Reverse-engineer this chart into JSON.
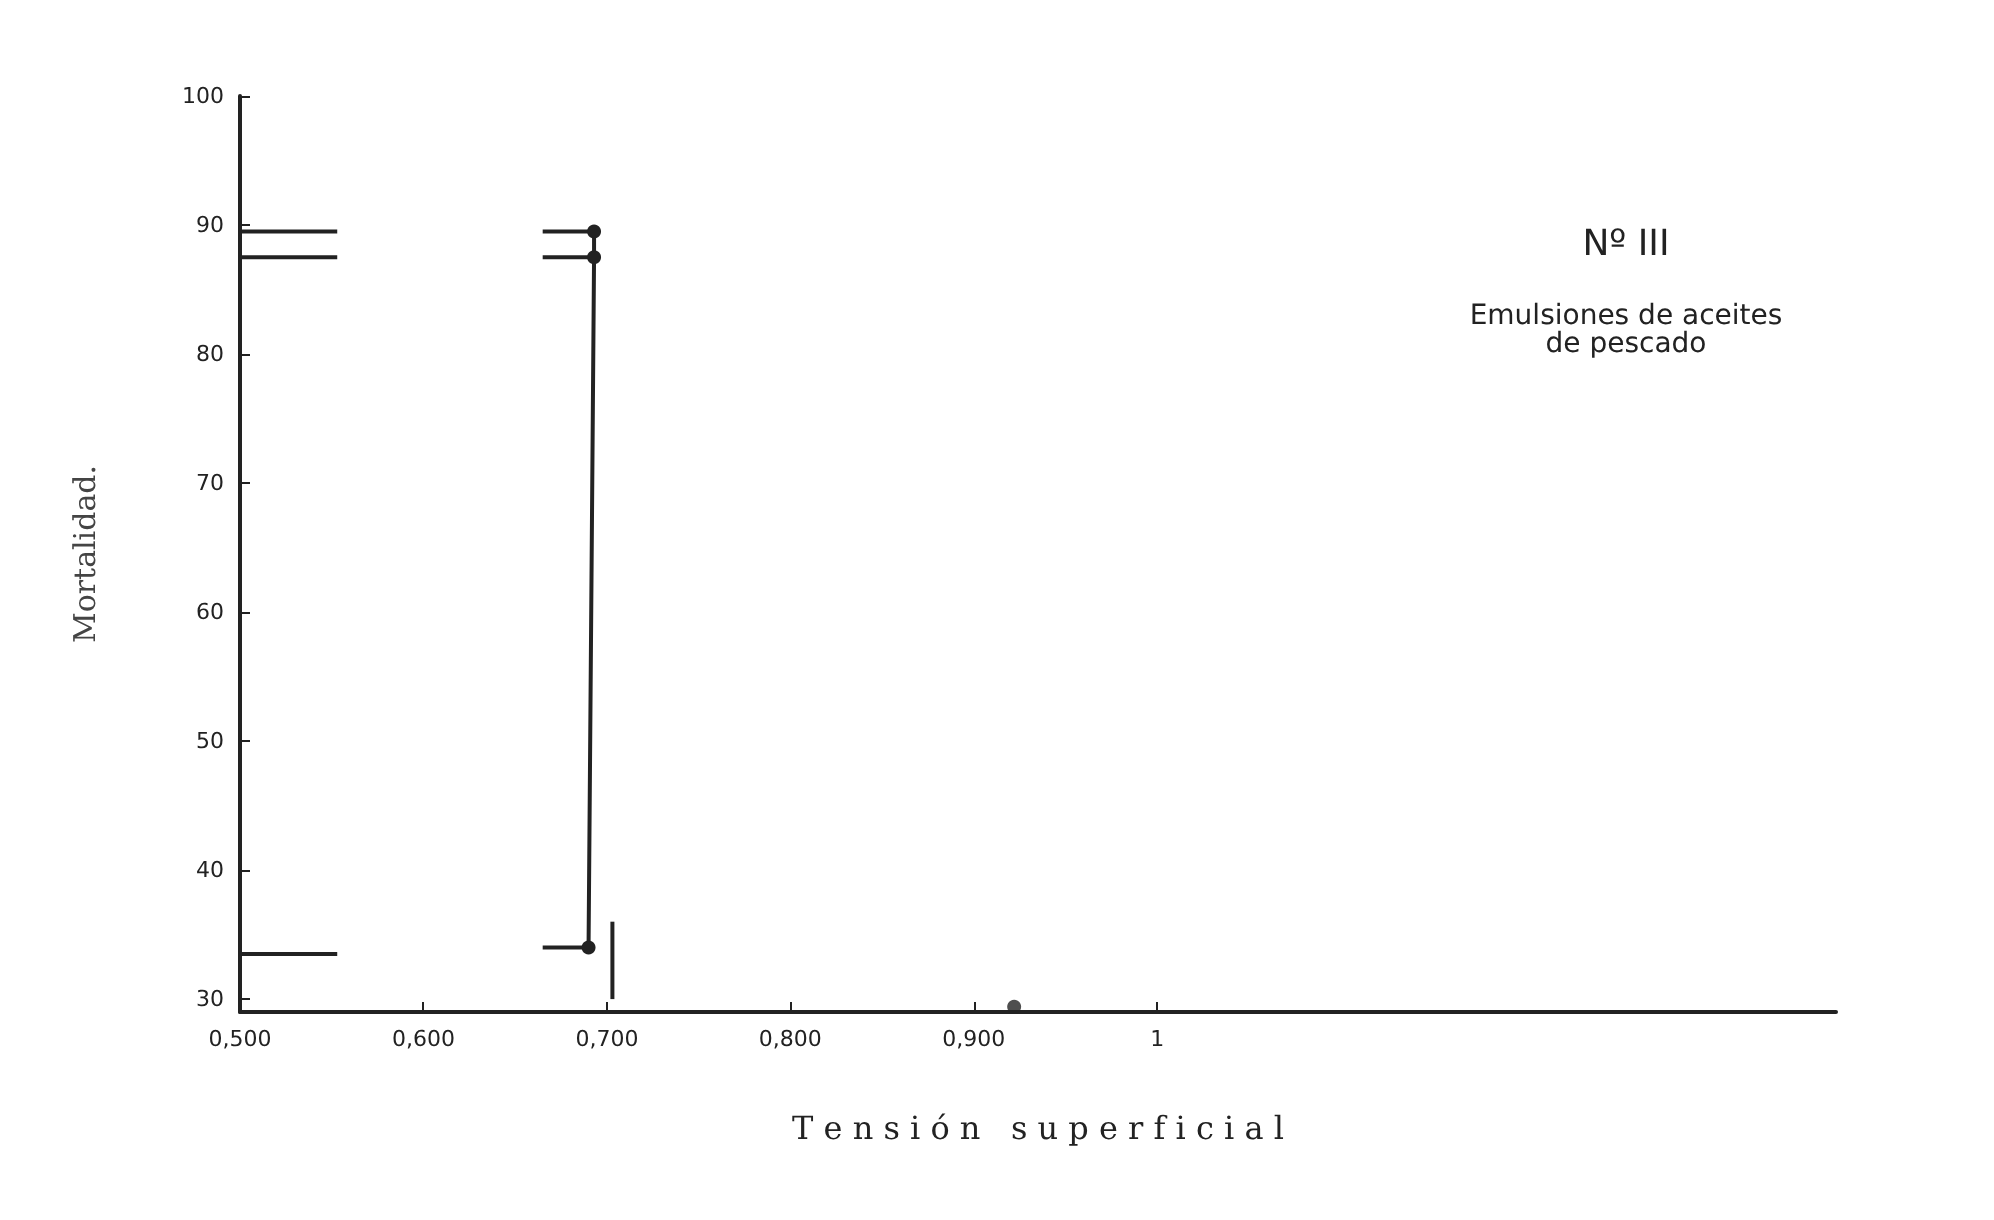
{
  "chart_data": {
    "type": "line",
    "title": "Nº III",
    "subtitle": "Emulsiones de aceites\nde pescado",
    "xlabel": "T e n s i ó n   s u p e r f i c i a l",
    "ylabel": "Mortalidad.",
    "xlim": [
      0.5,
      1.37
    ],
    "xticks": [
      {
        "value": 0.5,
        "label": "0,500"
      },
      {
        "value": 0.6,
        "label": "0,600"
      },
      {
        "value": 0.7,
        "label": "0,700"
      },
      {
        "value": 0.8,
        "label": "0,800"
      },
      {
        "value": 0.9,
        "label": "0,900"
      },
      1
    ],
    "ylim": [
      29,
      100
    ],
    "yticks": [
      30,
      40,
      50,
      60,
      70,
      80,
      90,
      100
    ],
    "grid": false,
    "series": [
      {
        "color": "#222222",
        "marker": "circle",
        "x": [
          0.69,
          0.693,
          0.693
        ],
        "values": [
          34,
          87.5,
          89.5
        ]
      },
      {
        "color": "#222222",
        "marker": "none",
        "x": [
          0.5,
          0.553
        ],
        "values": [
          89.5,
          89.5
        ]
      },
      {
        "color": "#222222",
        "marker": "none",
        "x": [
          0.5,
          0.553
        ],
        "values": [
          87.5,
          87.5
        ]
      },
      {
        "color": "#222222",
        "marker": "none",
        "x": [
          0.5,
          0.553
        ],
        "values": [
          33.5,
          33.5
        ]
      },
      {
        "color": "#222222",
        "marker": "none",
        "x": [
          0.665,
          0.69
        ],
        "values": [
          89.5,
          89.5
        ]
      },
      {
        "color": "#222222",
        "marker": "none",
        "x": [
          0.665,
          0.69
        ],
        "values": [
          87.5,
          87.5
        ]
      },
      {
        "color": "#222222",
        "marker": "none",
        "x": [
          0.665,
          0.69
        ],
        "values": [
          34,
          34
        ]
      },
      {
        "color": "#222222",
        "marker": "none",
        "x": [
          0.703,
          0.703
        ],
        "values": [
          30,
          36
        ]
      },
      {
        "type": "scatter",
        "color": "#222222",
        "marker": "circle",
        "x": [
          0.922
        ],
        "values": [
          29.4
        ]
      }
    ]
  }
}
